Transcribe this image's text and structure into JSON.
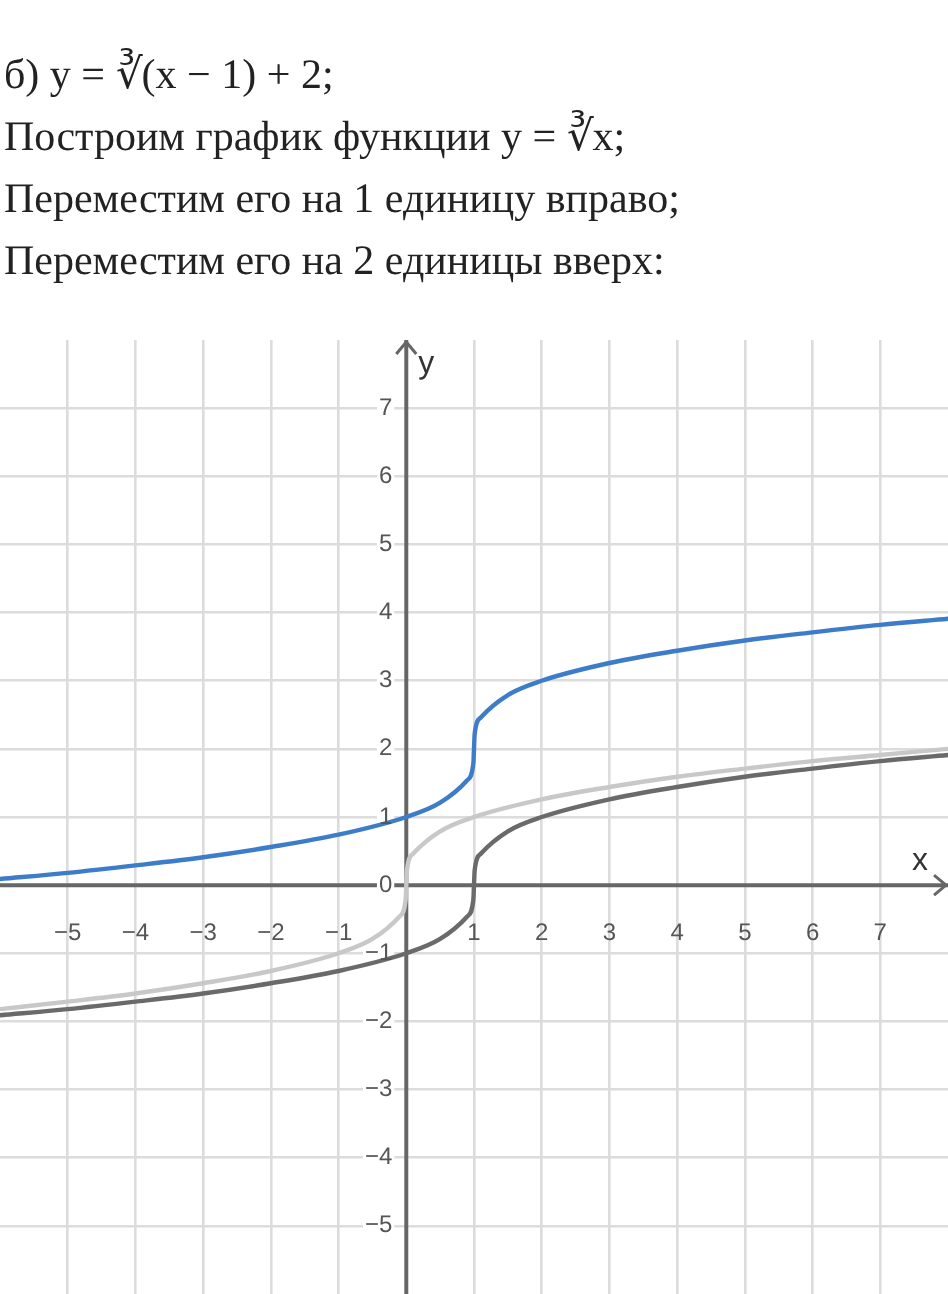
{
  "chart_data": {
    "type": "line",
    "title": "б) y = ∛(x − 1) + 2;",
    "annotations": [
      "Построим график функции y = ∛x;",
      "Переместим его на 1 единицу вправо;",
      "Переместим его на 2 единицы вверх:"
    ],
    "xlabel": "x",
    "ylabel": "y",
    "series": [
      {
        "color": "#c8c8c8",
        "x": [
          -6,
          -5,
          -4,
          -3,
          -2,
          -1,
          -0.5,
          -0.1,
          -0.01,
          0,
          0.01,
          0.1,
          0.5,
          1,
          2,
          3,
          4,
          5,
          6,
          7,
          8
        ],
        "values": [
          -1.82,
          -1.71,
          -1.59,
          -1.44,
          -1.26,
          -1,
          -0.79,
          -0.46,
          -0.22,
          0,
          0.22,
          0.46,
          0.79,
          1,
          1.26,
          1.44,
          1.59,
          1.71,
          1.82,
          1.91,
          2
        ]
      },
      {
        "color": "#6a6a6a",
        "x": [
          -6,
          -5,
          -4,
          -3,
          -2,
          -1,
          0,
          0.5,
          0.9,
          0.99,
          1,
          1.01,
          1.1,
          1.5,
          2,
          3,
          4,
          5,
          6,
          7,
          8
        ],
        "values": [
          -1.91,
          -1.82,
          -1.71,
          -1.59,
          -1.44,
          -1.26,
          -1,
          -0.79,
          -0.46,
          -0.22,
          0,
          0.22,
          0.46,
          0.79,
          1,
          1.26,
          1.44,
          1.59,
          1.71,
          1.82,
          1.91
        ]
      },
      {
        "color": "#3d7cc9",
        "x": [
          -6,
          -5,
          -4,
          -3,
          -2,
          -1,
          0,
          0.5,
          0.9,
          0.99,
          1,
          1.01,
          1.1,
          1.5,
          2,
          3,
          4,
          5,
          6,
          7,
          8
        ],
        "values": [
          0.09,
          0.18,
          0.29,
          0.41,
          0.56,
          0.74,
          1,
          1.21,
          1.54,
          1.78,
          2,
          2.22,
          2.46,
          2.79,
          3,
          3.26,
          3.44,
          3.59,
          3.71,
          3.82,
          3.91
        ]
      }
    ],
    "xlim": [
      -6,
      8
    ],
    "ylim": [
      -6,
      8
    ],
    "xticks": [
      -5,
      -4,
      -3,
      -2,
      -1,
      {
        "value": 0,
        "label": null
      },
      1,
      2,
      3,
      4,
      5,
      6,
      7
    ],
    "yticks": [
      -5,
      -4,
      -3,
      -2,
      -1,
      0,
      1,
      2,
      3,
      4,
      5,
      6,
      7
    ],
    "grid": true,
    "legend": false,
    "marker": "none",
    "line_style": "solid"
  }
}
